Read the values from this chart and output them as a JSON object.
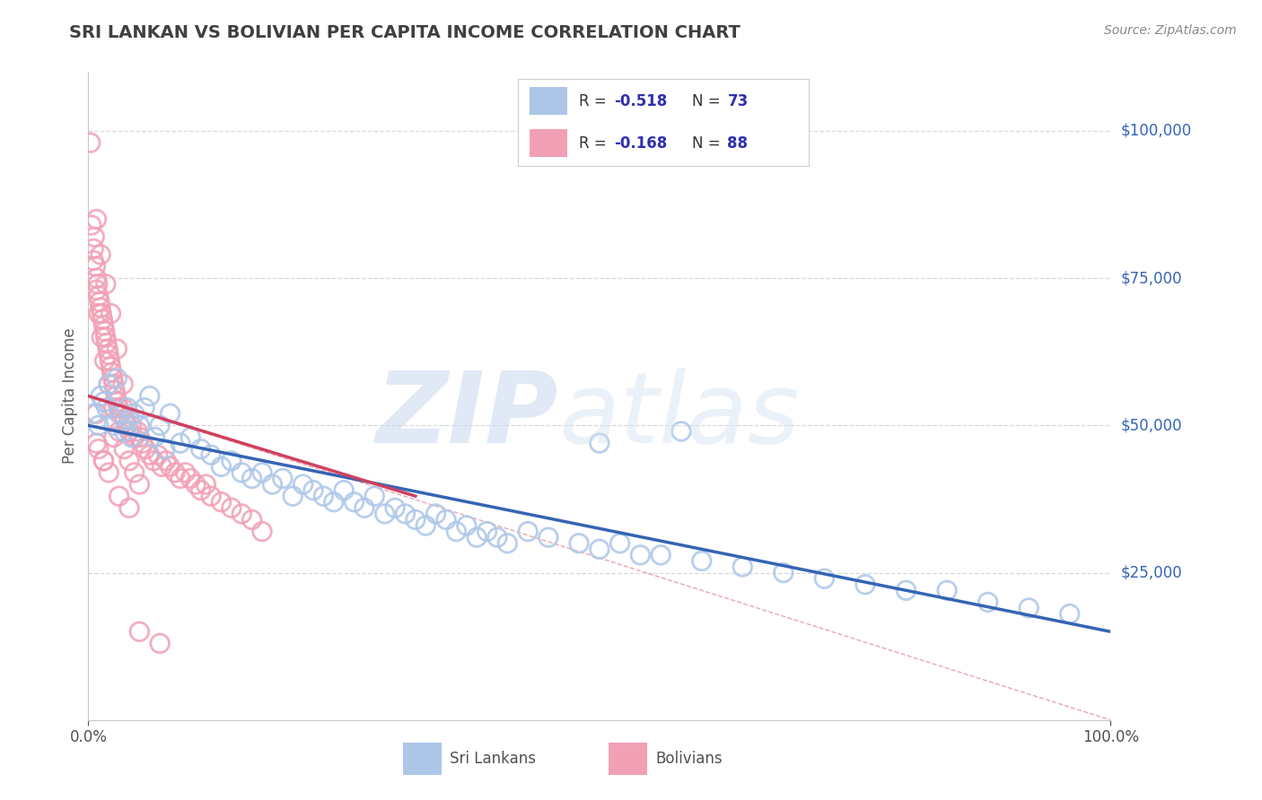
{
  "title": "SRI LANKAN VS BOLIVIAN PER CAPITA INCOME CORRELATION CHART",
  "source_text": "Source: ZipAtlas.com",
  "ylabel": "Per Capita Income",
  "xlim": [
    0,
    1
  ],
  "ylim": [
    0,
    110000
  ],
  "sri_lankan_color": "#adc6e8",
  "bolivian_color": "#f2a0b5",
  "sri_lankan_line_color": "#3464b4",
  "bolivian_line_color": "#d04060",
  "background_color": "#ffffff",
  "grid_color": "#d8d8d8",
  "title_color": "#404040",
  "legend_r_color": "#3030b0",
  "sri_lankan_label": "Sri Lankans",
  "bolivian_label": "Bolivians",
  "sl_x": [
    0.005,
    0.01,
    0.012,
    0.015,
    0.018,
    0.02,
    0.025,
    0.028,
    0.03,
    0.035,
    0.038,
    0.04,
    0.042,
    0.045,
    0.05,
    0.055,
    0.06,
    0.065,
    0.07,
    0.075,
    0.08,
    0.09,
    0.1,
    0.11,
    0.12,
    0.13,
    0.14,
    0.15,
    0.16,
    0.17,
    0.18,
    0.19,
    0.2,
    0.21,
    0.22,
    0.23,
    0.24,
    0.25,
    0.26,
    0.27,
    0.28,
    0.29,
    0.3,
    0.31,
    0.32,
    0.33,
    0.34,
    0.35,
    0.36,
    0.37,
    0.38,
    0.39,
    0.4,
    0.41,
    0.43,
    0.45,
    0.48,
    0.5,
    0.52,
    0.54,
    0.56,
    0.6,
    0.64,
    0.68,
    0.72,
    0.76,
    0.8,
    0.84,
    0.88,
    0.92,
    0.96,
    0.5,
    0.58
  ],
  "sl_y": [
    52000,
    50000,
    55000,
    54000,
    53000,
    57000,
    50000,
    58000,
    52000,
    49000,
    53000,
    51000,
    48000,
    52000,
    50000,
    53000,
    55000,
    48000,
    50000,
    46000,
    52000,
    47000,
    48000,
    46000,
    45000,
    43000,
    44000,
    42000,
    41000,
    42000,
    40000,
    41000,
    38000,
    40000,
    39000,
    38000,
    37000,
    39000,
    37000,
    36000,
    38000,
    35000,
    36000,
    35000,
    34000,
    33000,
    35000,
    34000,
    32000,
    33000,
    31000,
    32000,
    31000,
    30000,
    32000,
    31000,
    30000,
    29000,
    30000,
    28000,
    28000,
    27000,
    26000,
    25000,
    24000,
    23000,
    22000,
    22000,
    20000,
    19000,
    18000,
    47000,
    49000
  ],
  "bol_x": [
    0.002,
    0.003,
    0.005,
    0.006,
    0.007,
    0.008,
    0.009,
    0.01,
    0.011,
    0.012,
    0.013,
    0.014,
    0.015,
    0.016,
    0.017,
    0.018,
    0.019,
    0.02,
    0.021,
    0.022,
    0.023,
    0.024,
    0.025,
    0.026,
    0.027,
    0.028,
    0.03,
    0.032,
    0.034,
    0.036,
    0.038,
    0.04,
    0.042,
    0.045,
    0.048,
    0.05,
    0.053,
    0.056,
    0.06,
    0.064,
    0.068,
    0.072,
    0.076,
    0.08,
    0.085,
    0.09,
    0.095,
    0.1,
    0.105,
    0.11,
    0.115,
    0.12,
    0.13,
    0.14,
    0.15,
    0.16,
    0.17,
    0.005,
    0.008,
    0.01,
    0.013,
    0.016,
    0.02,
    0.025,
    0.03,
    0.035,
    0.04,
    0.045,
    0.05,
    0.008,
    0.012,
    0.017,
    0.022,
    0.028,
    0.034,
    0.008,
    0.01,
    0.015,
    0.02,
    0.03,
    0.04,
    0.05,
    0.07,
    0.008,
    0.015,
    0.025
  ],
  "bol_y": [
    98000,
    84000,
    80000,
    82000,
    77000,
    75000,
    74000,
    72000,
    71000,
    70000,
    69000,
    68000,
    67000,
    66000,
    65000,
    64000,
    63000,
    62000,
    61000,
    60000,
    59000,
    58000,
    57000,
    56000,
    55000,
    54000,
    53000,
    52000,
    53000,
    51000,
    50000,
    49000,
    50000,
    48000,
    49000,
    48000,
    47000,
    46000,
    45000,
    44000,
    45000,
    43000,
    44000,
    43000,
    42000,
    41000,
    42000,
    41000,
    40000,
    39000,
    40000,
    38000,
    37000,
    36000,
    35000,
    34000,
    32000,
    78000,
    73000,
    69000,
    65000,
    61000,
    57000,
    53000,
    49000,
    46000,
    44000,
    42000,
    40000,
    85000,
    79000,
    74000,
    69000,
    63000,
    57000,
    47000,
    46000,
    44000,
    42000,
    38000,
    36000,
    15000,
    13000,
    52000,
    44000,
    48000
  ]
}
